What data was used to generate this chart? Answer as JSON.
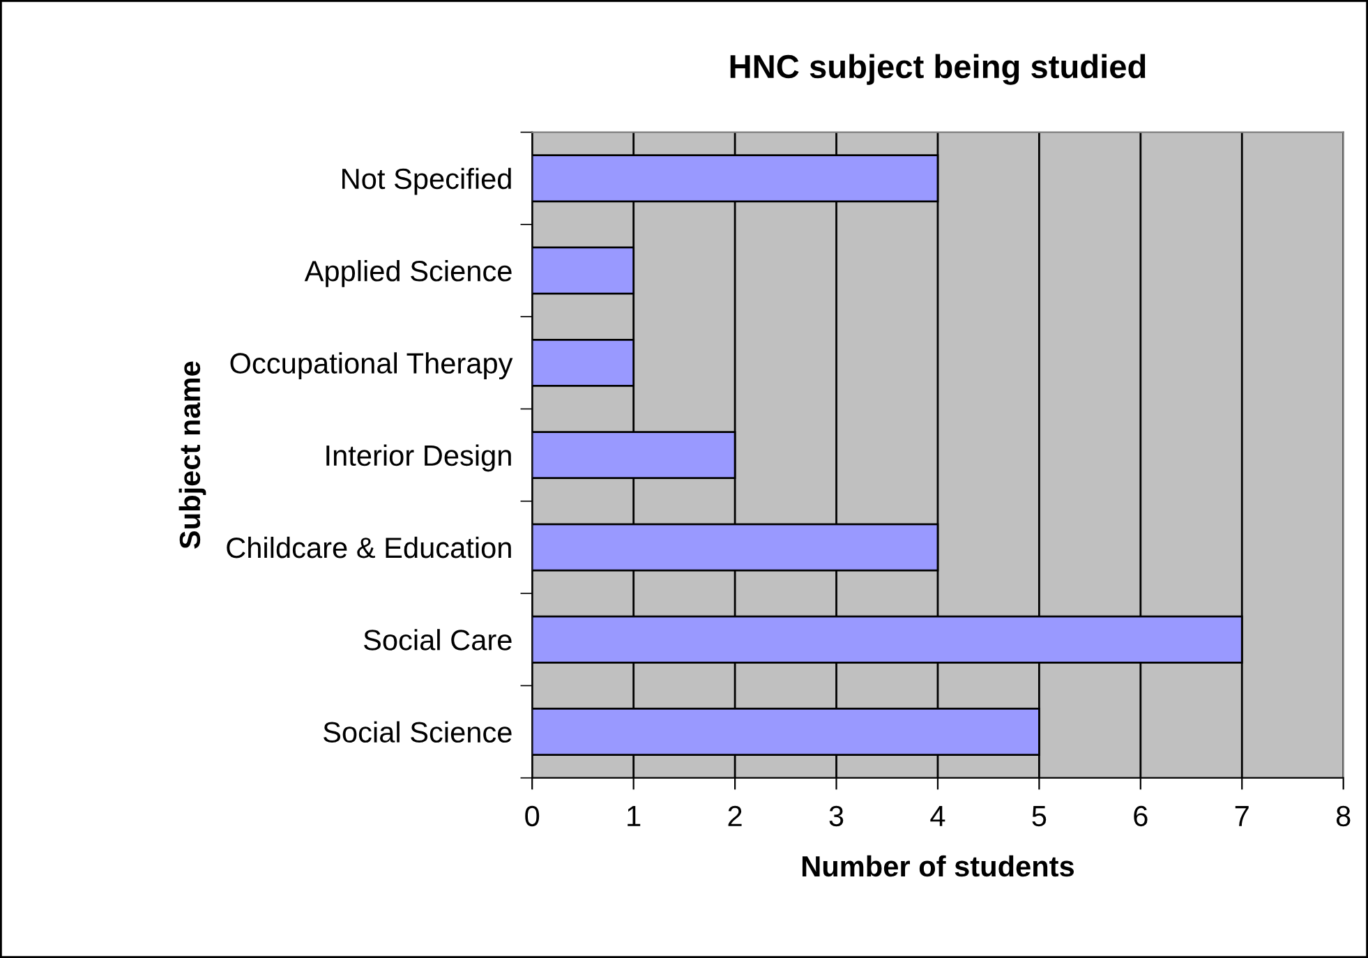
{
  "chart_data": {
    "type": "bar",
    "orientation": "horizontal",
    "title": "HNC subject being studied",
    "xlabel": "Number of students",
    "ylabel": "Subject name",
    "categories": [
      "Not Specified",
      "Applied Science",
      "Occupational Therapy",
      "Interior Design",
      "Childcare & Education",
      "Social Care",
      "Social Science"
    ],
    "values": [
      4,
      1,
      1,
      2,
      4,
      7,
      5
    ],
    "color": "#9999ff",
    "xlim": [
      0,
      8
    ],
    "xticks": [
      0,
      1,
      2,
      3,
      4,
      5,
      6,
      7,
      8
    ],
    "grid": "x",
    "legend": false
  }
}
